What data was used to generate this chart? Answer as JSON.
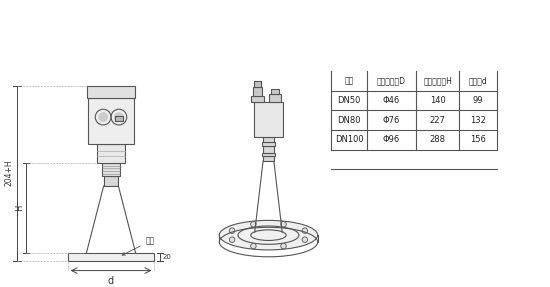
{
  "bg_color": "#ffffff",
  "line_color": "#555555",
  "table_headers": [
    "法兰",
    "喇叭口直径D",
    "喇叭口高度H",
    "四氟盘d"
  ],
  "table_rows": [
    [
      "DN50",
      "Φ46",
      "140",
      "99"
    ],
    [
      "DN80",
      "Φ76",
      "227",
      "132"
    ],
    [
      "DN100",
      "Φ96",
      "288",
      "156"
    ]
  ],
  "dim_labels": {
    "total_height": "204+H",
    "h_label": "H",
    "flange_label": "法兰",
    "d_label": "d",
    "thickness": "20"
  }
}
